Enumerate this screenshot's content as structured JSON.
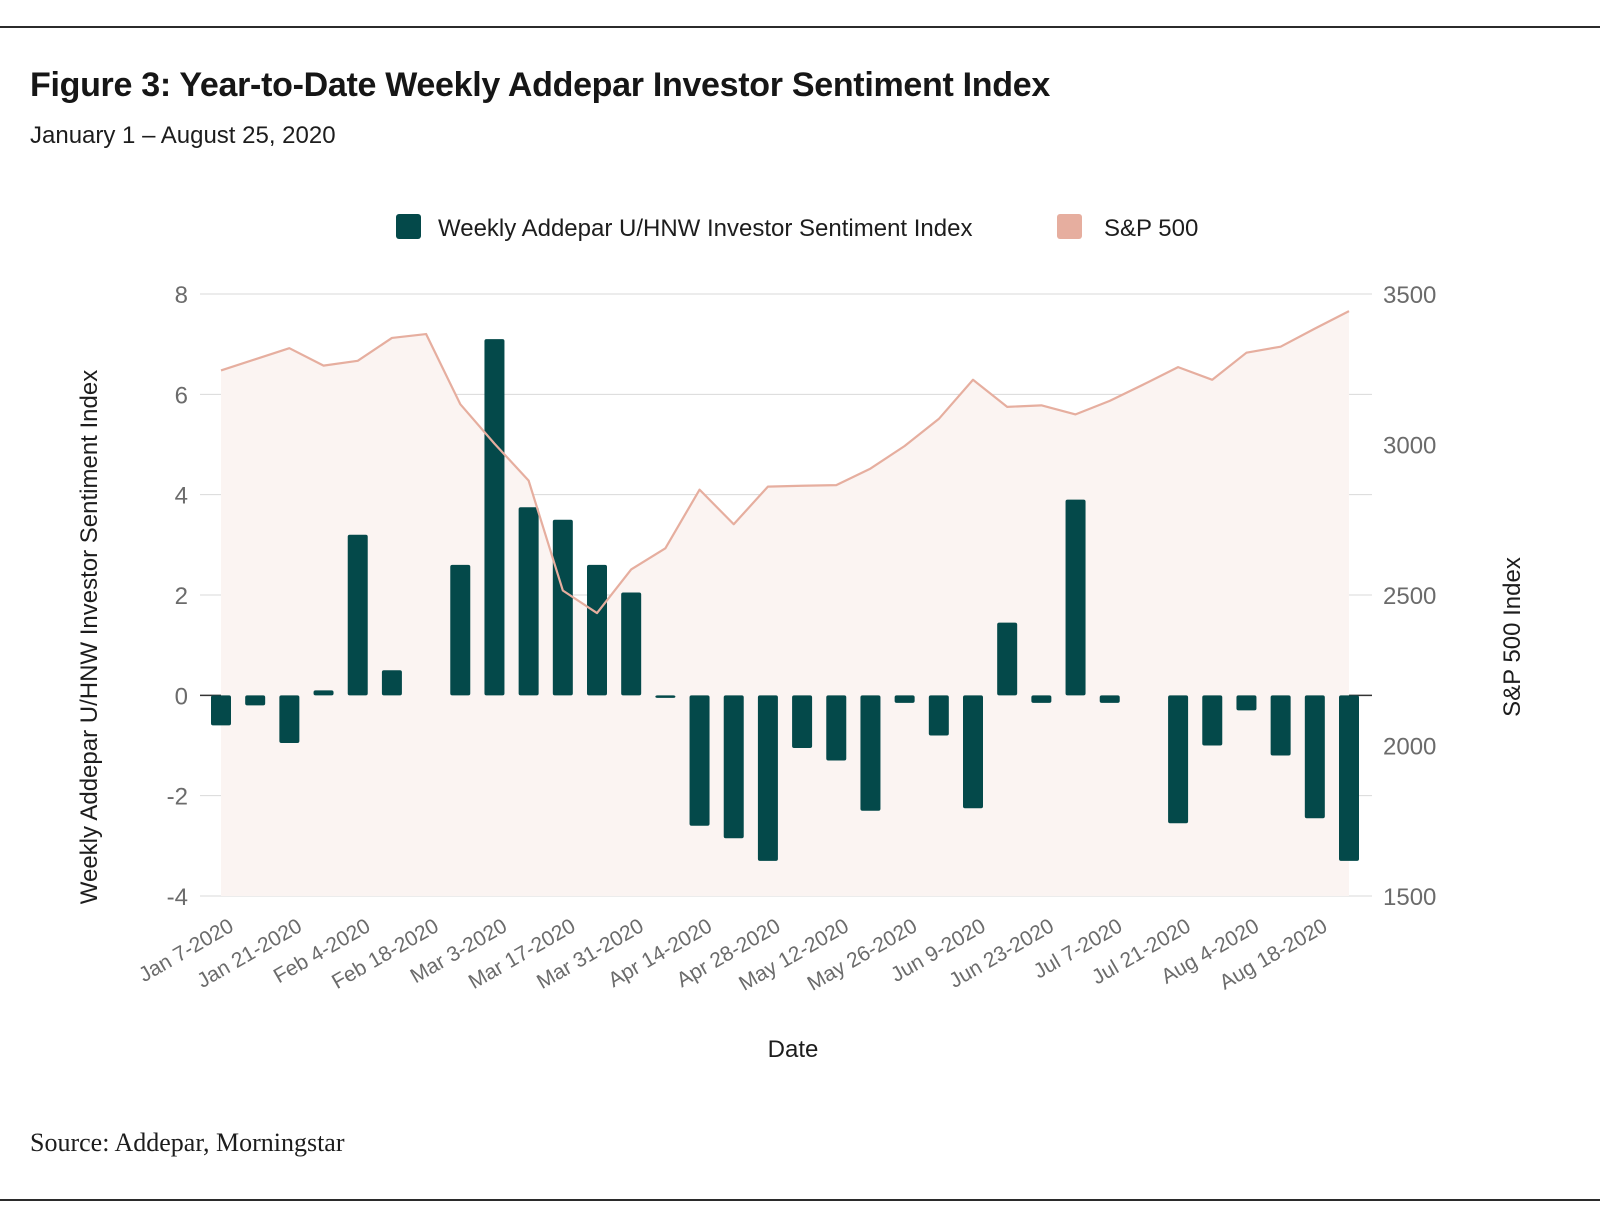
{
  "header": {
    "title": "Figure 3: Year-to-Date Weekly Addepar Investor Sentiment Index",
    "subtitle": "January 1 – August 25, 2020"
  },
  "footer": {
    "source": "Source: Addepar, Morningstar"
  },
  "colors": {
    "bar": "#04494a",
    "line": "#e6ae9f",
    "area": "#fbf4f2",
    "grid": "#d9d9d9",
    "tick": "#6b6b6b"
  },
  "chart_data": {
    "type": "bar",
    "combo": "bar + line (dual axis)",
    "xlabel": "Date",
    "ylabel_left": "Weekly Addepar U/HNW Investor Sentiment Index",
    "ylabel_right": "S&P 500 Index",
    "ylim_left": [
      -4,
      8
    ],
    "ylim_right": [
      1500,
      3500
    ],
    "yticks_left": [
      "8",
      "6",
      "4",
      "2",
      "0",
      "-2",
      "-4"
    ],
    "yticks_right": [
      "3500",
      "3000",
      "2500",
      "2000",
      "1500"
    ],
    "grid": true,
    "legend_position": "top-center",
    "x_tick_labels": [
      "Jan 7-2020",
      "Jan 21-2020",
      "Feb 4-2020",
      "Feb 18-2020",
      "Mar 3-2020",
      "Mar 17-2020",
      "Mar 31-2020",
      "Apr 14-2020",
      "Apr 28-2020",
      "May 12-2020",
      "May 26-2020",
      "Jun 9-2020",
      "Jun 23-2020",
      "Jul 7-2020",
      "Jul 21-2020",
      "Aug 4-2020",
      "Aug 18-2020"
    ],
    "series": [
      {
        "name": "Weekly Addepar U/HNW Investor Sentiment Index",
        "kind": "bar",
        "axis": "left",
        "values": [
          -0.6,
          -0.2,
          -0.95,
          0.1,
          3.2,
          0.5,
          0.0,
          2.6,
          7.1,
          3.75,
          3.5,
          2.6,
          2.05,
          -0.05,
          -2.6,
          -2.85,
          -3.3,
          -1.05,
          -1.3,
          -2.3,
          -0.15,
          -0.8,
          -2.25,
          1.45,
          -0.15,
          3.9,
          -0.15,
          0.0,
          -2.55,
          -1.0,
          -0.3,
          -1.2,
          -2.45,
          -3.3
        ]
      },
      {
        "name": "S&P 500",
        "kind": "line",
        "axis": "right",
        "style": "line with light filled area",
        "values": [
          3246,
          3283,
          3320,
          3262,
          3278,
          3354,
          3367,
          3134,
          3003,
          2880,
          2515,
          2440,
          2585,
          2655,
          2850,
          2735,
          2860,
          2863,
          2865,
          2920,
          2995,
          3085,
          3215,
          3125,
          3130,
          3100,
          3145,
          3200,
          3257,
          3215,
          3305,
          3325,
          3385,
          3443
        ]
      }
    ]
  }
}
